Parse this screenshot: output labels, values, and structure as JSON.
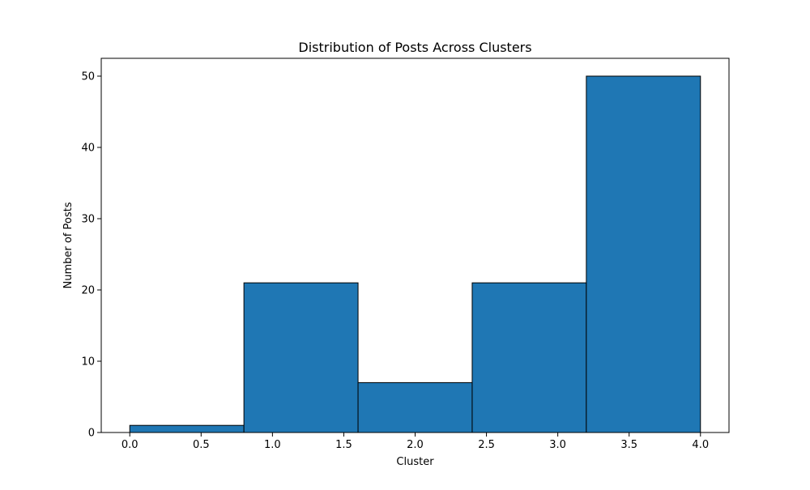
{
  "chart_data": {
    "type": "bar",
    "title": "Distribution of Posts Across Clusters",
    "xlabel": "Cluster",
    "ylabel": "Number of Posts",
    "bins": [
      {
        "x0": 0.0,
        "x1": 0.8,
        "value": 1
      },
      {
        "x0": 0.8,
        "x1": 1.6,
        "value": 21
      },
      {
        "x0": 1.6,
        "x1": 2.4,
        "value": 7
      },
      {
        "x0": 2.4,
        "x1": 3.2,
        "value": 21
      },
      {
        "x0": 3.2,
        "x1": 4.0,
        "value": 50
      }
    ],
    "xlim": [
      -0.2,
      4.2
    ],
    "ylim": [
      0,
      52.5
    ],
    "xticks": [
      0.0,
      0.5,
      1.0,
      1.5,
      2.0,
      2.5,
      3.0,
      3.5,
      4.0
    ],
    "xtick_labels": [
      "0.0",
      "0.5",
      "1.0",
      "1.5",
      "2.0",
      "2.5",
      "3.0",
      "3.5",
      "4.0"
    ],
    "yticks": [
      0,
      10,
      20,
      30,
      40,
      50
    ],
    "ytick_labels": [
      "0",
      "10",
      "20",
      "30",
      "40",
      "50"
    ],
    "grid": false,
    "bar_color": "#1f77b4",
    "edge_color": "#000000"
  }
}
